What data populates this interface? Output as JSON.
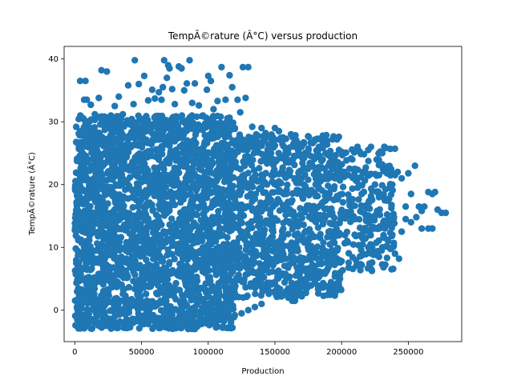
{
  "chart_data": {
    "type": "scatter",
    "title": "TempÃ©rature (Â°C) versus production",
    "xlabel": "Production",
    "ylabel": "TempÃ©rature (Â°C)",
    "xlim": [
      -8000,
      290000
    ],
    "ylim": [
      -5,
      42
    ],
    "xticks": [
      0,
      50000,
      100000,
      150000,
      200000,
      250000
    ],
    "xtick_labels": [
      "0",
      "50000",
      "100000",
      "150000",
      "200000",
      "250000"
    ],
    "yticks": [
      0,
      10,
      20,
      30,
      40
    ],
    "ytick_labels": [
      "0",
      "10",
      "20",
      "30",
      "40"
    ],
    "grid": false,
    "legend": "none",
    "point_color": "#1f77b4",
    "clusters": [
      {
        "x_range": [
          0,
          120000
        ],
        "y_range": [
          -3,
          31
        ]
      },
      {
        "x_range": [
          120000,
          200000
        ],
        "y_range": [
          2,
          28
        ]
      },
      {
        "x_range": [
          200000,
          240000
        ],
        "y_range": [
          6,
          26
        ]
      }
    ],
    "points": [
      [
        4000,
        36.5
      ],
      [
        8000,
        36.5
      ],
      [
        7000,
        33.5
      ],
      [
        9000,
        33.5
      ],
      [
        12000,
        32.7
      ],
      [
        15000,
        31.2
      ],
      [
        18000,
        33.8
      ],
      [
        20000,
        38.2
      ],
      [
        24000,
        38.0
      ],
      [
        27000,
        31.0
      ],
      [
        30000,
        32.5
      ],
      [
        33000,
        34.0
      ],
      [
        36000,
        31.2
      ],
      [
        40000,
        35.8
      ],
      [
        44000,
        32.8
      ],
      [
        45000,
        39.8
      ],
      [
        48000,
        36.0
      ],
      [
        52000,
        37.3
      ],
      [
        55000,
        33.4
      ],
      [
        58000,
        35.1
      ],
      [
        60000,
        33.7
      ],
      [
        63000,
        34.7
      ],
      [
        65000,
        33.5
      ],
      [
        66000,
        35.5
      ],
      [
        67000,
        39.8
      ],
      [
        69000,
        37.0
      ],
      [
        70000,
        39.0
      ],
      [
        71000,
        38.5
      ],
      [
        73000,
        35.2
      ],
      [
        75000,
        32.8
      ],
      [
        78000,
        38.8
      ],
      [
        80000,
        38.5
      ],
      [
        82000,
        35.0
      ],
      [
        84000,
        36.1
      ],
      [
        86000,
        39.8
      ],
      [
        88000,
        33.0
      ],
      [
        90000,
        36.1
      ],
      [
        93000,
        32.6
      ],
      [
        96000,
        31.0
      ],
      [
        99000,
        35.1
      ],
      [
        100000,
        37.3
      ],
      [
        102000,
        36.5
      ],
      [
        104000,
        32.0
      ],
      [
        107000,
        33.3
      ],
      [
        110000,
        38.7
      ],
      [
        113000,
        33.5
      ],
      [
        116000,
        37.4
      ],
      [
        118000,
        35.5
      ],
      [
        120000,
        29.0
      ],
      [
        122000,
        33.5
      ],
      [
        124000,
        31.5
      ],
      [
        126000,
        38.7
      ],
      [
        128000,
        33.8
      ],
      [
        130000,
        38.7
      ],
      [
        133000,
        29.2
      ],
      [
        136000,
        28.0
      ],
      [
        140000,
        29.0
      ],
      [
        143000,
        28.2
      ],
      [
        146000,
        27.5
      ],
      [
        150000,
        29.0
      ],
      [
        153000,
        28.5
      ],
      [
        156000,
        27.5
      ],
      [
        158000,
        25.0
      ],
      [
        160000,
        25.0
      ],
      [
        162000,
        28.0
      ],
      [
        165000,
        26.0
      ],
      [
        168000,
        22.0
      ],
      [
        170000,
        26.0
      ],
      [
        172000,
        24.5
      ],
      [
        175000,
        22.7
      ],
      [
        178000,
        23.0
      ],
      [
        180000,
        27.0
      ],
      [
        183000,
        26.0
      ],
      [
        185000,
        26.0
      ],
      [
        188000,
        25.0
      ],
      [
        190000,
        23.0
      ],
      [
        193000,
        22.5
      ],
      [
        195000,
        21.0
      ],
      [
        198000,
        25.5
      ],
      [
        200000,
        25.2
      ],
      [
        202000,
        22.0
      ],
      [
        205000,
        21.5
      ],
      [
        208000,
        24.0
      ],
      [
        210000,
        22.5
      ],
      [
        212000,
        19.5
      ],
      [
        215000,
        18.5
      ],
      [
        218000,
        21.8
      ],
      [
        220000,
        25.5
      ],
      [
        222000,
        26.0
      ],
      [
        225000,
        20.0
      ],
      [
        228000,
        21.5
      ],
      [
        230000,
        25.0
      ],
      [
        232000,
        26.0
      ],
      [
        234000,
        21.8
      ],
      [
        236000,
        22.5
      ],
      [
        238000,
        20.0
      ],
      [
        240000,
        21.5
      ],
      [
        242000,
        22.0
      ],
      [
        245000,
        21.0
      ],
      [
        248000,
        16.5
      ],
      [
        250000,
        21.8
      ],
      [
        252000,
        18.5
      ],
      [
        255000,
        23.0
      ],
      [
        258000,
        16.5
      ],
      [
        260000,
        15.8
      ],
      [
        262000,
        16.5
      ],
      [
        265000,
        18.8
      ],
      [
        268000,
        18.5
      ],
      [
        270000,
        18.8
      ],
      [
        272000,
        16.0
      ],
      [
        275000,
        15.5
      ],
      [
        278000,
        15.5
      ],
      [
        210000,
        14.5
      ],
      [
        215000,
        12.0
      ],
      [
        218000,
        11.5
      ],
      [
        220000,
        10.0
      ],
      [
        222000,
        9.5
      ],
      [
        225000,
        13.0
      ],
      [
        228000,
        8.5
      ],
      [
        230000,
        9.5
      ],
      [
        232000,
        13.5
      ],
      [
        235000,
        11.0
      ],
      [
        238000,
        12.0
      ],
      [
        240000,
        9.0
      ],
      [
        243000,
        8.2
      ],
      [
        245000,
        12.5
      ],
      [
        248000,
        14.5
      ],
      [
        252000,
        14.0
      ],
      [
        256000,
        14.8
      ],
      [
        260000,
        13.0
      ],
      [
        265000,
        13.0
      ],
      [
        268000,
        13.0
      ],
      [
        150000,
        3.0
      ],
      [
        155000,
        2.2
      ],
      [
        160000,
        2.0
      ],
      [
        163000,
        1.5
      ],
      [
        165000,
        1.5
      ],
      [
        168000,
        3.5
      ],
      [
        170000,
        4.5
      ],
      [
        173000,
        5.0
      ],
      [
        178000,
        6.5
      ],
      [
        180000,
        7.0
      ],
      [
        185000,
        6.0
      ],
      [
        188000,
        6.0
      ],
      [
        190000,
        6.8
      ],
      [
        195000,
        7.5
      ],
      [
        198000,
        8.0
      ],
      [
        200000,
        7.8
      ],
      [
        3000,
        -2.0
      ],
      [
        6000,
        -2.5
      ],
      [
        10000,
        -2.2
      ],
      [
        15000,
        -2.0
      ],
      [
        20000,
        -2.5
      ],
      [
        25000,
        -2.0
      ],
      [
        30000,
        -2.4
      ],
      [
        35000,
        -2.0
      ],
      [
        40000,
        -2.5
      ],
      [
        45000,
        -1.8
      ],
      [
        50000,
        -2.0
      ],
      [
        55000,
        -2.2
      ],
      [
        60000,
        -2.5
      ],
      [
        65000,
        -1.5
      ],
      [
        70000,
        -2.0
      ],
      [
        75000,
        -2.5
      ],
      [
        80000,
        -2.0
      ],
      [
        85000,
        -3.0
      ],
      [
        88000,
        -2.5
      ],
      [
        90000,
        -3.0
      ],
      [
        95000,
        -2.2
      ],
      [
        100000,
        -2.0
      ],
      [
        105000,
        -1.8
      ],
      [
        110000,
        -1.5
      ],
      [
        115000,
        -1.0
      ],
      [
        120000,
        -0.8
      ],
      [
        125000,
        -0.5
      ],
      [
        130000,
        0.0
      ],
      [
        135000,
        0.5
      ],
      [
        140000,
        1.0
      ]
    ]
  }
}
